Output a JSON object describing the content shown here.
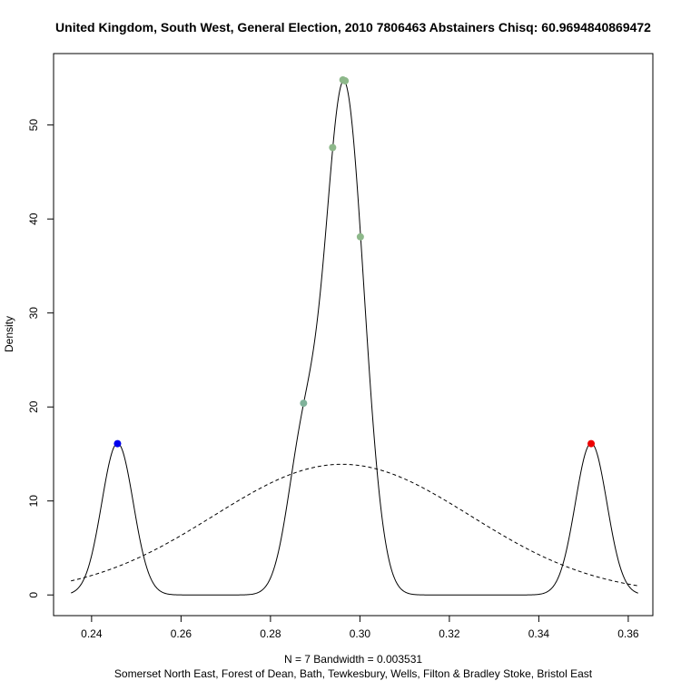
{
  "chart_data": {
    "type": "line",
    "title": "United Kingdom, South West, General Election, 2010 7806463 Abstainers Chisq: 60.9694840869472",
    "ylabel": "Density",
    "xlabel_line1": "N = 7   Bandwidth = 0.003531",
    "xlabel_line2": "Somerset North East, Forest of Dean, Bath, Tewkesbury, Wells, Filton & Bradley Stoke, Bristol East",
    "xlim": [
      0.2315,
      0.3655
    ],
    "ylim": [
      -2.2,
      57.6
    ],
    "x_ticks": [
      0.24,
      0.26,
      0.28,
      0.3,
      0.32,
      0.34,
      0.36
    ],
    "x_tick_labels": [
      "0.24",
      "0.26",
      "0.28",
      "0.30",
      "0.32",
      "0.34",
      "0.36"
    ],
    "y_ticks": [
      0,
      10,
      20,
      30,
      40,
      50
    ],
    "y_tick_labels": [
      "0",
      "10",
      "20",
      "30",
      "40",
      "50"
    ],
    "grid": false,
    "kde": {
      "bandwidth": 0.003531,
      "x_range": [
        0.2354,
        0.3622
      ],
      "samples": [
        0.2458,
        0.2874,
        0.2939,
        0.2962,
        0.2967,
        0.3001,
        0.3517
      ]
    },
    "normal_curve": {
      "style": "dashed",
      "mean": 0.296,
      "sd": 0.0287,
      "x_range": [
        0.2354,
        0.3622
      ]
    },
    "points": [
      {
        "x": 0.2458,
        "y": 16.1,
        "color": "#0000ee"
      },
      {
        "x": 0.2874,
        "y": 20.4,
        "color": "#7fb29a"
      },
      {
        "x": 0.2939,
        "y": 47.6,
        "color": "#8db88a"
      },
      {
        "x": 0.2962,
        "y": 54.8,
        "color": "#8db88a"
      },
      {
        "x": 0.2967,
        "y": 54.7,
        "color": "#8db88a"
      },
      {
        "x": 0.3001,
        "y": 38.1,
        "color": "#8db88a"
      },
      {
        "x": 0.3517,
        "y": 16.1,
        "color": "#ee0000"
      }
    ]
  }
}
